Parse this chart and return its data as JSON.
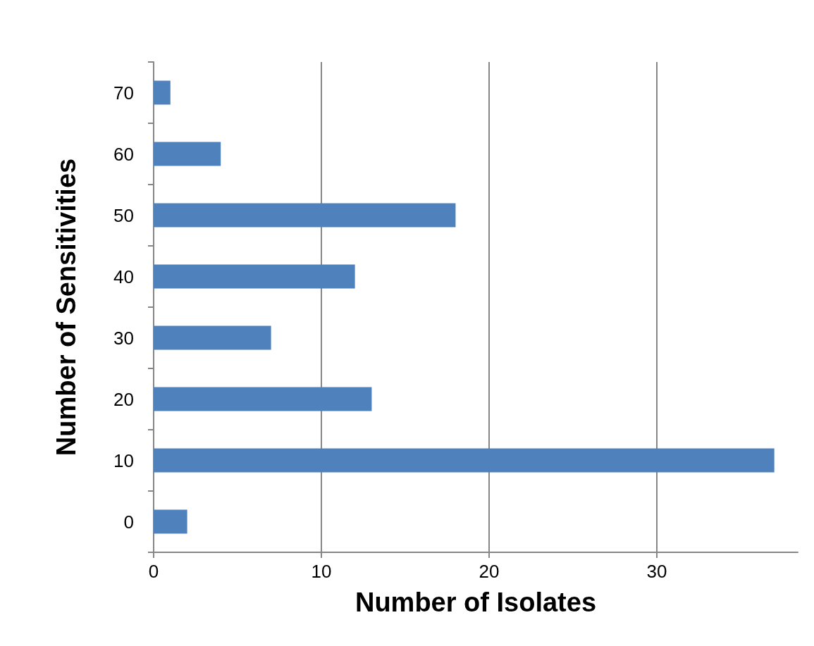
{
  "chart_data": {
    "type": "bar",
    "orientation": "horizontal",
    "xlabel": "Number of Isolates",
    "ylabel": "Number of Sensitivities",
    "categories": [
      "70",
      "60",
      "50",
      "40",
      "30",
      "20",
      "10",
      "0"
    ],
    "values": [
      1,
      4,
      18,
      12,
      7,
      13,
      37,
      2
    ],
    "color": "#4f81bd",
    "xlim": [
      0,
      38.4
    ],
    "xticks": [
      0,
      10,
      20,
      30
    ],
    "grid": "x"
  }
}
